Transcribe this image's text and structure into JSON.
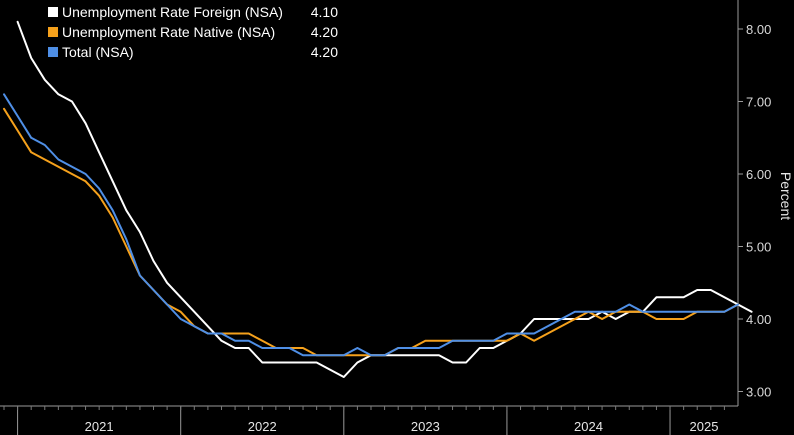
{
  "chart_data": {
    "type": "line",
    "ylabel": "Percent",
    "ylim": [
      2.8,
      8.4
    ],
    "xlim": [
      "2020-12-01",
      "2025-06-01"
    ],
    "yticks": [
      "3.00",
      "4.00",
      "5.00",
      "6.00",
      "7.00",
      "8.00"
    ],
    "year_labels": [
      "2021",
      "2022",
      "2023",
      "2024",
      "2025"
    ],
    "grid": false,
    "legend_position": "top-left",
    "series": [
      {
        "name": "Unemployment Rate Foreign (NSA)",
        "last_value": "4.10",
        "color": "#ffffff",
        "points": [
          [
            "2021-01",
            8.1
          ],
          [
            "2021-02",
            7.6
          ],
          [
            "2021-03",
            7.3
          ],
          [
            "2021-04",
            7.1
          ],
          [
            "2021-05",
            7.0
          ],
          [
            "2021-06",
            6.7
          ],
          [
            "2021-07",
            6.3
          ],
          [
            "2021-08",
            5.9
          ],
          [
            "2021-09",
            5.5
          ],
          [
            "2021-10",
            5.2
          ],
          [
            "2021-11",
            4.8
          ],
          [
            "2021-12",
            4.5
          ],
          [
            "2022-01",
            4.3
          ],
          [
            "2022-02",
            4.1
          ],
          [
            "2022-03",
            3.9
          ],
          [
            "2022-04",
            3.7
          ],
          [
            "2022-05",
            3.6
          ],
          [
            "2022-06",
            3.6
          ],
          [
            "2022-07",
            3.4
          ],
          [
            "2022-08",
            3.4
          ],
          [
            "2022-09",
            3.4
          ],
          [
            "2022-10",
            3.4
          ],
          [
            "2022-11",
            3.4
          ],
          [
            "2022-12",
            3.3
          ],
          [
            "2023-01",
            3.2
          ],
          [
            "2023-02",
            3.4
          ],
          [
            "2023-03",
            3.5
          ],
          [
            "2023-04",
            3.5
          ],
          [
            "2023-05",
            3.5
          ],
          [
            "2023-06",
            3.5
          ],
          [
            "2023-07",
            3.5
          ],
          [
            "2023-08",
            3.5
          ],
          [
            "2023-09",
            3.4
          ],
          [
            "2023-10",
            3.4
          ],
          [
            "2023-11",
            3.6
          ],
          [
            "2023-12",
            3.6
          ],
          [
            "2024-01",
            3.7
          ],
          [
            "2024-02",
            3.8
          ],
          [
            "2024-03",
            4.0
          ],
          [
            "2024-04",
            4.0
          ],
          [
            "2024-05",
            4.0
          ],
          [
            "2024-06",
            4.0
          ],
          [
            "2024-07",
            4.0
          ],
          [
            "2024-08",
            4.1
          ],
          [
            "2024-09",
            4.0
          ],
          [
            "2024-10",
            4.1
          ],
          [
            "2024-11",
            4.1
          ],
          [
            "2024-12",
            4.3
          ],
          [
            "2025-01",
            4.3
          ],
          [
            "2025-02",
            4.3
          ],
          [
            "2025-03",
            4.4
          ],
          [
            "2025-04",
            4.4
          ],
          [
            "2025-05",
            4.3
          ],
          [
            "2025-06",
            4.2
          ],
          [
            "2025-07",
            4.1
          ]
        ]
      },
      {
        "name": "Unemployment Rate Native (NSA)",
        "last_value": "4.20",
        "color": "#f5a11c",
        "points": [
          [
            "2020-12",
            6.9
          ],
          [
            "2021-01",
            6.6
          ],
          [
            "2021-02",
            6.3
          ],
          [
            "2021-03",
            6.2
          ],
          [
            "2021-04",
            6.1
          ],
          [
            "2021-05",
            6.0
          ],
          [
            "2021-06",
            5.9
          ],
          [
            "2021-07",
            5.7
          ],
          [
            "2021-08",
            5.4
          ],
          [
            "2021-09",
            5.0
          ],
          [
            "2021-10",
            4.6
          ],
          [
            "2021-11",
            4.4
          ],
          [
            "2021-12",
            4.2
          ],
          [
            "2022-01",
            4.1
          ],
          [
            "2022-02",
            3.9
          ],
          [
            "2022-03",
            3.8
          ],
          [
            "2022-04",
            3.8
          ],
          [
            "2022-05",
            3.8
          ],
          [
            "2022-06",
            3.8
          ],
          [
            "2022-07",
            3.7
          ],
          [
            "2022-08",
            3.6
          ],
          [
            "2022-09",
            3.6
          ],
          [
            "2022-10",
            3.6
          ],
          [
            "2022-11",
            3.5
          ],
          [
            "2022-12",
            3.5
          ],
          [
            "2023-01",
            3.5
          ],
          [
            "2023-02",
            3.5
          ],
          [
            "2023-03",
            3.5
          ],
          [
            "2023-04",
            3.5
          ],
          [
            "2023-05",
            3.6
          ],
          [
            "2023-06",
            3.6
          ],
          [
            "2023-07",
            3.7
          ],
          [
            "2023-08",
            3.7
          ],
          [
            "2023-09",
            3.7
          ],
          [
            "2023-10",
            3.7
          ],
          [
            "2023-11",
            3.7
          ],
          [
            "2023-12",
            3.7
          ],
          [
            "2024-01",
            3.7
          ],
          [
            "2024-02",
            3.8
          ],
          [
            "2024-03",
            3.7
          ],
          [
            "2024-04",
            3.8
          ],
          [
            "2024-05",
            3.9
          ],
          [
            "2024-06",
            4.0
          ],
          [
            "2024-07",
            4.1
          ],
          [
            "2024-08",
            4.0
          ],
          [
            "2024-09",
            4.1
          ],
          [
            "2024-10",
            4.1
          ],
          [
            "2024-11",
            4.1
          ],
          [
            "2024-12",
            4.0
          ],
          [
            "2025-01",
            4.0
          ],
          [
            "2025-02",
            4.0
          ],
          [
            "2025-03",
            4.1
          ],
          [
            "2025-04",
            4.1
          ],
          [
            "2025-05",
            4.1
          ],
          [
            "2025-06",
            4.2
          ]
        ]
      },
      {
        "name": "Total (NSA)",
        "last_value": "4.20",
        "color": "#4f8fe6",
        "points": [
          [
            "2020-12",
            7.1
          ],
          [
            "2021-01",
            6.8
          ],
          [
            "2021-02",
            6.5
          ],
          [
            "2021-03",
            6.4
          ],
          [
            "2021-04",
            6.2
          ],
          [
            "2021-05",
            6.1
          ],
          [
            "2021-06",
            6.0
          ],
          [
            "2021-07",
            5.8
          ],
          [
            "2021-08",
            5.5
          ],
          [
            "2021-09",
            5.1
          ],
          [
            "2021-10",
            4.6
          ],
          [
            "2021-11",
            4.4
          ],
          [
            "2021-12",
            4.2
          ],
          [
            "2022-01",
            4.0
          ],
          [
            "2022-02",
            3.9
          ],
          [
            "2022-03",
            3.8
          ],
          [
            "2022-04",
            3.8
          ],
          [
            "2022-05",
            3.7
          ],
          [
            "2022-06",
            3.7
          ],
          [
            "2022-07",
            3.6
          ],
          [
            "2022-08",
            3.6
          ],
          [
            "2022-09",
            3.6
          ],
          [
            "2022-10",
            3.5
          ],
          [
            "2022-11",
            3.5
          ],
          [
            "2022-12",
            3.5
          ],
          [
            "2023-01",
            3.5
          ],
          [
            "2023-02",
            3.6
          ],
          [
            "2023-03",
            3.5
          ],
          [
            "2023-04",
            3.5
          ],
          [
            "2023-05",
            3.6
          ],
          [
            "2023-06",
            3.6
          ],
          [
            "2023-07",
            3.6
          ],
          [
            "2023-08",
            3.6
          ],
          [
            "2023-09",
            3.7
          ],
          [
            "2023-10",
            3.7
          ],
          [
            "2023-11",
            3.7
          ],
          [
            "2023-12",
            3.7
          ],
          [
            "2024-01",
            3.8
          ],
          [
            "2024-02",
            3.8
          ],
          [
            "2024-03",
            3.8
          ],
          [
            "2024-04",
            3.9
          ],
          [
            "2024-05",
            4.0
          ],
          [
            "2024-06",
            4.1
          ],
          [
            "2024-07",
            4.1
          ],
          [
            "2024-08",
            4.1
          ],
          [
            "2024-09",
            4.1
          ],
          [
            "2024-10",
            4.2
          ],
          [
            "2024-11",
            4.1
          ],
          [
            "2024-12",
            4.1
          ],
          [
            "2025-01",
            4.1
          ],
          [
            "2025-02",
            4.1
          ],
          [
            "2025-03",
            4.1
          ],
          [
            "2025-04",
            4.1
          ],
          [
            "2025-05",
            4.1
          ],
          [
            "2025-06",
            4.2
          ]
        ]
      }
    ]
  }
}
